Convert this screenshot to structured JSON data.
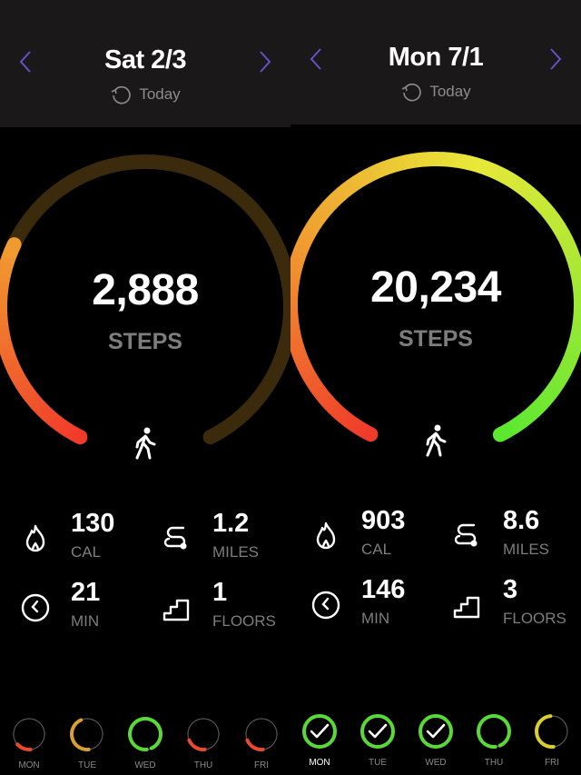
{
  "colors": {
    "header_bg": "#1a1819",
    "chevron": "#6a4fc8",
    "gray": "#7d7d7d",
    "track": "#3b2a0c",
    "red": "#f03a2a",
    "orange": "#f0a030",
    "yellow": "#e8e838",
    "green": "#5ce830"
  },
  "step_goal": 10000,
  "panels": [
    {
      "title": "Sat 2/3",
      "today": "Today",
      "steps": "2,888",
      "steps_value": 2888,
      "steps_label": "STEPS",
      "stats": [
        {
          "icon": "flame-icon",
          "value": "130",
          "label": "CAL"
        },
        {
          "icon": "route-icon",
          "value": "1.2",
          "label": "MILES"
        },
        {
          "icon": "clock-icon",
          "value": "21",
          "label": "MIN"
        },
        {
          "icon": "stairs-icon",
          "value": "1",
          "label": "FLOORS"
        }
      ],
      "week": [
        {
          "day": "MON",
          "progress": 0.15,
          "color": "#e84a2a",
          "done": false
        },
        {
          "day": "TUE",
          "progress": 0.45,
          "color": "#d8a030",
          "done": false
        },
        {
          "day": "WED",
          "progress": 0.95,
          "color": "#5ad838",
          "done": false
        },
        {
          "day": "THU",
          "progress": 0.2,
          "color": "#e84a2a",
          "done": false
        },
        {
          "day": "FRI",
          "progress": 0.2,
          "color": "#e84a2a",
          "done": false
        }
      ],
      "selected_day": null
    },
    {
      "title": "Mon 7/1",
      "today": "Today",
      "steps": "20,234",
      "steps_value": 20234,
      "steps_label": "STEPS",
      "stats": [
        {
          "icon": "flame-icon",
          "value": "903",
          "label": "CAL"
        },
        {
          "icon": "route-icon",
          "value": "8.6",
          "label": "MILES"
        },
        {
          "icon": "clock-icon",
          "value": "146",
          "label": "MIN"
        },
        {
          "icon": "stairs-icon",
          "value": "3",
          "label": "FLOORS"
        }
      ],
      "week": [
        {
          "day": "MON",
          "progress": 1,
          "color": "#5ad838",
          "done": true
        },
        {
          "day": "TUE",
          "progress": 1,
          "color": "#5ad838",
          "done": true
        },
        {
          "day": "WED",
          "progress": 1,
          "color": "#5ad838",
          "done": true
        },
        {
          "day": "THU",
          "progress": 0.95,
          "color": "#5ad838",
          "done": false
        },
        {
          "day": "FRI",
          "progress": 0.5,
          "color": "#d8d030",
          "done": false
        }
      ],
      "selected_day": "MON"
    }
  ]
}
